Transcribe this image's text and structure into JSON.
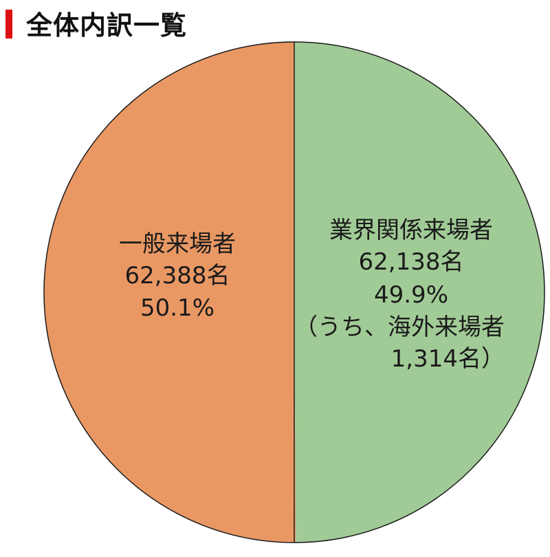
{
  "header": {
    "title": "全体内訳一覧",
    "accent_color": "#dd1111"
  },
  "chart_data": {
    "type": "pie",
    "title": "全体内訳一覧",
    "start_angle_deg": 0,
    "direction": "clockwise",
    "slices": [
      {
        "label": "業界関係来場者",
        "value": 62138,
        "value_text": "62,138名",
        "percent_text": "49.9%",
        "note_line1": "（うち、海外来場者",
        "note_line2": "1,314名）",
        "color": "#a1cb96"
      },
      {
        "label": "一般来場者",
        "value": 62388,
        "value_text": "62,388名",
        "percent_text": "50.1%",
        "color": "#e99864"
      }
    ],
    "stroke_color": "#1a1a1a"
  }
}
